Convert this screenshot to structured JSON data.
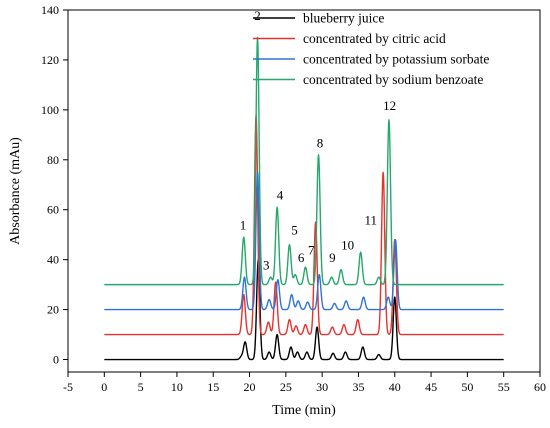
{
  "chart_data": {
    "type": "line",
    "title": "",
    "xlabel": "Time (min)",
    "ylabel": "Absorbance (mAu)",
    "xlim": [
      -5,
      60
    ],
    "ylim": [
      -5,
      140
    ],
    "x_ticks": [
      -5,
      0,
      5,
      10,
      15,
      20,
      25,
      30,
      35,
      40,
      45,
      50,
      55,
      60
    ],
    "y_ticks": [
      0,
      20,
      40,
      60,
      80,
      100,
      120,
      140
    ],
    "grid": false,
    "legend_position": "top-right",
    "series": [
      {
        "name": "blueberry juice",
        "color": "#000000",
        "baseline": 0,
        "peaks": [
          [
            18.9,
            1.2
          ],
          [
            19.4,
            7
          ],
          [
            21.2,
            40
          ],
          [
            22.7,
            3
          ],
          [
            23.8,
            10
          ],
          [
            25.7,
            5
          ],
          [
            26.6,
            3
          ],
          [
            27.9,
            3
          ],
          [
            29.3,
            13
          ],
          [
            31.5,
            2.5
          ],
          [
            33.2,
            3
          ],
          [
            35.6,
            5
          ],
          [
            37.8,
            2
          ],
          [
            40,
            25
          ]
        ]
      },
      {
        "name": "concentrated by citric acid",
        "color": "#e8312f",
        "baseline": 10,
        "peaks": [
          [
            19.2,
            16
          ],
          [
            20.9,
            88
          ],
          [
            22.6,
            5
          ],
          [
            23.6,
            21
          ],
          [
            25.5,
            6
          ],
          [
            26.4,
            3.5
          ],
          [
            27.7,
            4
          ],
          [
            29.1,
            45
          ],
          [
            31.4,
            3
          ],
          [
            33,
            4
          ],
          [
            34.9,
            6
          ],
          [
            38.4,
            65
          ],
          [
            40,
            38
          ]
        ]
      },
      {
        "name": "concentrated by potassium sorbate",
        "color": "#2e74d6",
        "baseline": 20,
        "peaks": [
          [
            19.3,
            13
          ],
          [
            21.1,
            55
          ],
          [
            22.7,
            4
          ],
          [
            23.9,
            12
          ],
          [
            25.8,
            6
          ],
          [
            26.7,
            3.5
          ],
          [
            28,
            3
          ],
          [
            29.6,
            14
          ],
          [
            31.7,
            2.5
          ],
          [
            33.3,
            3.5
          ],
          [
            35.7,
            5
          ],
          [
            39.1,
            5
          ],
          [
            40.1,
            28
          ]
        ]
      },
      {
        "name": "concentrated by sodium benzoate",
        "color": "#24a86b",
        "baseline": 30,
        "peaks": [
          [
            19.2,
            19
          ],
          [
            21.1,
            99
          ],
          [
            22.9,
            3
          ],
          [
            23.8,
            31
          ],
          [
            25.5,
            16
          ],
          [
            26.3,
            4
          ],
          [
            27.7,
            7
          ],
          [
            29.5,
            52
          ],
          [
            31.3,
            3
          ],
          [
            32.6,
            6
          ],
          [
            35.3,
            13
          ],
          [
            37.8,
            3
          ],
          [
            39.2,
            66
          ]
        ]
      }
    ],
    "annotations": [
      {
        "text": "1",
        "x": 19.1,
        "y": 52
      },
      {
        "text": "2",
        "x": 21.1,
        "y": 136
      },
      {
        "text": "3",
        "x": 22.3,
        "y": 36
      },
      {
        "text": "4",
        "x": 24.2,
        "y": 64
      },
      {
        "text": "5",
        "x": 26.2,
        "y": 50
      },
      {
        "text": "6",
        "x": 27.1,
        "y": 39
      },
      {
        "text": "7",
        "x": 28.5,
        "y": 42
      },
      {
        "text": "8",
        "x": 29.7,
        "y": 85
      },
      {
        "text": "9",
        "x": 31.4,
        "y": 39
      },
      {
        "text": "10",
        "x": 33.5,
        "y": 44
      },
      {
        "text": "11",
        "x": 36.7,
        "y": 54
      },
      {
        "text": "12",
        "x": 39.3,
        "y": 100
      }
    ]
  }
}
